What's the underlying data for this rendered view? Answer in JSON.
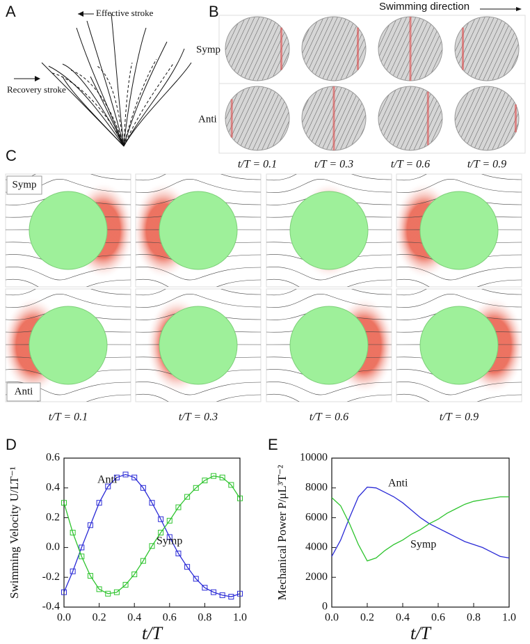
{
  "panel_labels": [
    "A",
    "B",
    "C",
    "D",
    "E"
  ],
  "panel_a": {
    "effective": "Effective stroke",
    "recovery": "Recovery stroke"
  },
  "panel_b": {
    "direction": "Swimming direction",
    "rows": [
      "Symp",
      "Anti"
    ],
    "times": [
      "t/T = 0.1",
      "t/T = 0.3",
      "t/T = 0.6",
      "t/T = 0.9"
    ]
  },
  "panel_c": {
    "rows": [
      "Symp",
      "Anti"
    ],
    "times": [
      "t/T = 0.1",
      "t/T = 0.3",
      "t/T = 0.6",
      "t/T = 0.9"
    ]
  },
  "chart_data": [
    {
      "type": "line",
      "markers": "square",
      "xlabel": "t/T",
      "ylabel": "Swimming Velocity U/LT⁻¹",
      "x": [
        0,
        0.05,
        0.1,
        0.15,
        0.2,
        0.25,
        0.3,
        0.35,
        0.4,
        0.45,
        0.5,
        0.55,
        0.6,
        0.65,
        0.7,
        0.75,
        0.8,
        0.85,
        0.9,
        0.95,
        1
      ],
      "series": [
        {
          "name": "Anti",
          "color": "#2a2ad6",
          "values": [
            -0.3,
            -0.16,
            0.0,
            0.15,
            0.3,
            0.41,
            0.47,
            0.49,
            0.47,
            0.4,
            0.3,
            0.19,
            0.07,
            -0.04,
            -0.13,
            -0.21,
            -0.27,
            -0.3,
            -0.32,
            -0.33,
            -0.31
          ]
        },
        {
          "name": "Symp",
          "color": "#2ec42e",
          "values": [
            0.3,
            0.1,
            -0.06,
            -0.19,
            -0.28,
            -0.31,
            -0.3,
            -0.25,
            -0.18,
            -0.09,
            0.01,
            0.1,
            0.18,
            0.27,
            0.34,
            0.4,
            0.45,
            0.48,
            0.47,
            0.42,
            0.33
          ]
        }
      ],
      "xlim": [
        0,
        1
      ],
      "xticks": [
        {
          "value": 0,
          "label": "0.0"
        },
        0.2,
        0.4,
        0.6,
        0.8,
        {
          "value": 1,
          "label": "1.0"
        }
      ],
      "ylim": [
        -0.4,
        0.6
      ],
      "yticks": [
        -0.4,
        -0.2,
        {
          "value": 0,
          "label": "0.0"
        },
        0.2,
        0.4,
        0.6
      ]
    },
    {
      "type": "line",
      "xlabel": "t/T",
      "ylabel": "Mechanical Power P/μL³T⁻²",
      "x": [
        0,
        0.05,
        0.1,
        0.15,
        0.2,
        0.25,
        0.3,
        0.35,
        0.4,
        0.45,
        0.5,
        0.55,
        0.6,
        0.65,
        0.7,
        0.75,
        0.8,
        0.85,
        0.9,
        0.95,
        1
      ],
      "series": [
        {
          "name": "Anti",
          "color": "#2a2ad6",
          "values": [
            3400,
            4500,
            6000,
            7400,
            8050,
            8000,
            7700,
            7400,
            7000,
            6500,
            6000,
            5600,
            5300,
            5000,
            4700,
            4400,
            4200,
            4000,
            3700,
            3400,
            3300
          ]
        },
        {
          "name": "Symp",
          "color": "#2ec42e",
          "values": [
            7350,
            6800,
            5600,
            4200,
            3100,
            3300,
            3800,
            4200,
            4500,
            4900,
            5200,
            5600,
            5900,
            6300,
            6600,
            6900,
            7100,
            7200,
            7300,
            7400,
            7400
          ]
        }
      ],
      "xlim": [
        0,
        1
      ],
      "xticks": [
        {
          "value": 0,
          "label": "0.0"
        },
        0.2,
        0.4,
        0.6,
        0.8,
        {
          "value": 1,
          "label": "1.0"
        }
      ],
      "ylim": [
        0,
        10000
      ],
      "yticks": [
        0,
        2000,
        4000,
        6000,
        8000,
        10000
      ]
    }
  ]
}
